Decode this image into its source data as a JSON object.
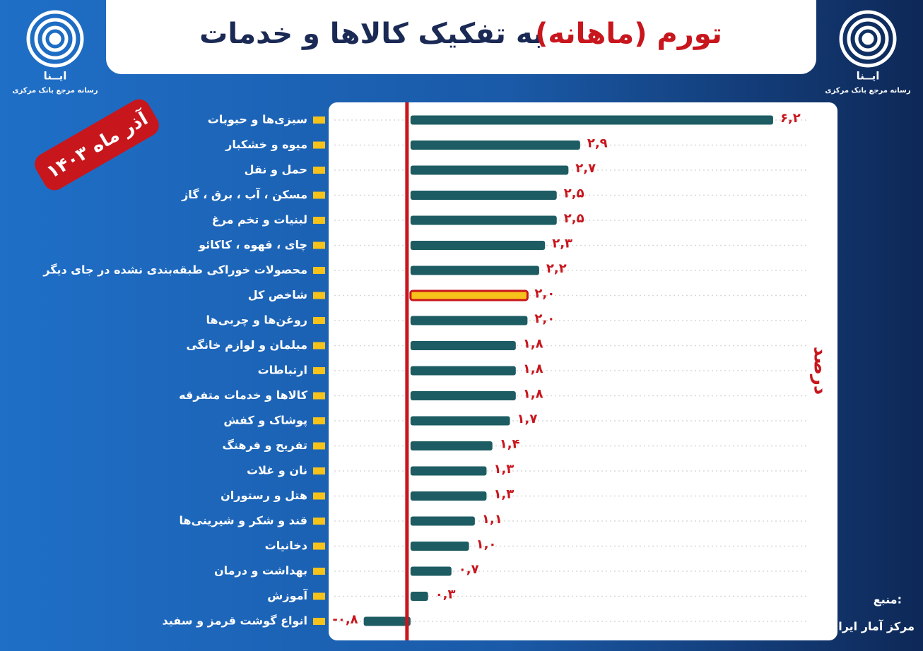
{
  "chart_data": {
    "type": "bar",
    "orientation": "horizontal",
    "title_highlight": "تورم (ماهانه)",
    "title": "به تفکیک کالاها و خدمات",
    "date_badge": "آذر ماه ۱۴۰۳",
    "axis_label": "درصد",
    "source_label": "منبع:",
    "source": "مرکز آمار ایران",
    "branding": {
      "logo": "ایــنا",
      "tagline": "رسانه مرجع بانک مرکزی"
    },
    "categories": [
      "سبزی‌ها و حبوبات",
      "میوه و خشکبار",
      "حمل و نقل",
      "مسکن ، آب ، برق ، گاز",
      "لبنیات و تخم مرغ",
      "چای ، قهوه ، کاکائو",
      "محصولات خوراکی طبقه‌بندی  نشده در جای دیگر",
      "شاخص کل",
      "روغن‌ها و چربی‌ها",
      "مبلمان و لوازم خانگی",
      "ارتباطات",
      "کالاها و خدمات متفرقه",
      "پوشاک و کفش",
      "تفریح و فرهنگ",
      "نان و غلات",
      "هتل و رستوران",
      "قند و شکر و شیرینی‌ها",
      "دخانیات",
      "بهداشت و درمان",
      "آموزش",
      "انواع گوشت قرمز و سفید"
    ],
    "values": [
      6.2,
      2.9,
      2.7,
      2.5,
      2.5,
      2.3,
      2.2,
      2.0,
      2.0,
      1.8,
      1.8,
      1.8,
      1.7,
      1.4,
      1.3,
      1.3,
      1.1,
      1.0,
      0.7,
      0.3,
      -0.8
    ],
    "value_labels": [
      "۶,۲",
      "۲,۹",
      "۲,۷",
      "۲,۵",
      "۲,۵",
      "۲,۳",
      "۲,۲",
      "۲,۰",
      "۲,۰",
      "۱,۸",
      "۱,۸",
      "۱,۸",
      "۱,۷",
      "۱,۴",
      "۱,۳",
      "۱,۳",
      "۱,۱",
      "۱,۰",
      "۰,۷",
      "۰,۳",
      "-۰,۸"
    ],
    "color": "#1d5c63",
    "highlight_index": 7,
    "highlight_color": "#f7c21a",
    "zero_line_color": "#c8161d",
    "xlim": [
      -1.4,
      7.3
    ]
  }
}
